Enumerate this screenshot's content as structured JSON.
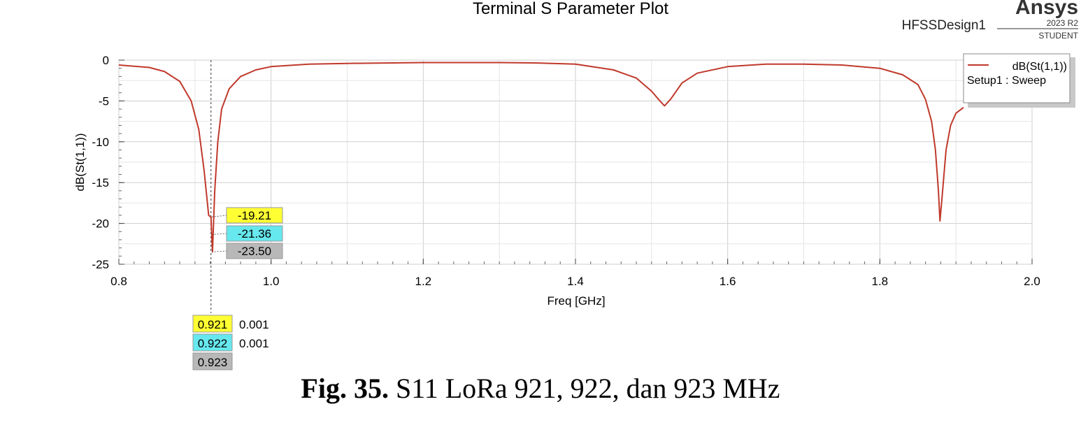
{
  "chart_data": {
    "type": "line",
    "title": "Terminal S Parameter Plot",
    "design_name": "HFSSDesign1",
    "brand": {
      "name": "Ansys",
      "version": "2023 R2",
      "edition": "STUDENT"
    },
    "xlabel": "Freq [GHz]",
    "ylabel": "dB(St(1,1))",
    "xlim": [
      0.8,
      2.0
    ],
    "ylim": [
      -25,
      0
    ],
    "x_ticks": [
      "0.8",
      "1.0",
      "1.2",
      "1.4",
      "1.6",
      "1.8",
      "2.0"
    ],
    "y_ticks": [
      "0",
      "-5",
      "-10",
      "-15",
      "-20",
      "-25"
    ],
    "grid": true,
    "legend_position": "top-right",
    "legend": {
      "series_label": "dB(St(1,1))",
      "setup_label": "Setup1 : Sweep"
    },
    "series": [
      {
        "name": "dB(St(1,1))",
        "color": "#c0392b",
        "x": [
          0.8,
          0.84,
          0.86,
          0.88,
          0.895,
          0.905,
          0.912,
          0.918,
          0.921,
          0.922,
          0.923,
          0.926,
          0.93,
          0.935,
          0.945,
          0.96,
          0.98,
          1.0,
          1.05,
          1.1,
          1.2,
          1.3,
          1.35,
          1.4,
          1.45,
          1.48,
          1.5,
          1.51,
          1.517,
          1.525,
          1.54,
          1.56,
          1.6,
          1.65,
          1.7,
          1.75,
          1.8,
          1.83,
          1.85,
          1.86,
          1.868,
          1.873,
          1.877,
          1.879,
          1.882,
          1.887,
          1.893,
          1.9,
          1.91
        ],
        "y": [
          -0.6,
          -0.9,
          -1.4,
          -2.6,
          -5.0,
          -8.5,
          -13.5,
          -19.0,
          -19.21,
          -21.36,
          -23.5,
          -16.0,
          -10.0,
          -6.0,
          -3.5,
          -2.0,
          -1.2,
          -0.8,
          -0.5,
          -0.4,
          -0.3,
          -0.3,
          -0.35,
          -0.5,
          -1.2,
          -2.2,
          -3.8,
          -4.9,
          -5.6,
          -4.8,
          -2.8,
          -1.6,
          -0.8,
          -0.5,
          -0.5,
          -0.6,
          -1.0,
          -1.8,
          -3.0,
          -4.8,
          -7.5,
          -11.0,
          -16.0,
          -19.7,
          -16.5,
          -11.0,
          -8.0,
          -6.5,
          -5.8
        ]
      }
    ],
    "markers": [
      {
        "x": "0.921",
        "y": "-19.21",
        "dx": "0.001",
        "color": "#ffff33"
      },
      {
        "x": "0.922",
        "y": "-21.36",
        "dx": "0.001",
        "color": "#66e8ee"
      },
      {
        "x": "0.923",
        "y": "-23.50",
        "dx": "",
        "color": "#b8b8b8"
      }
    ]
  },
  "caption": {
    "label": "Fig. 35.",
    "text": " S11 LoRa 921, 922, dan 923 MHz"
  }
}
